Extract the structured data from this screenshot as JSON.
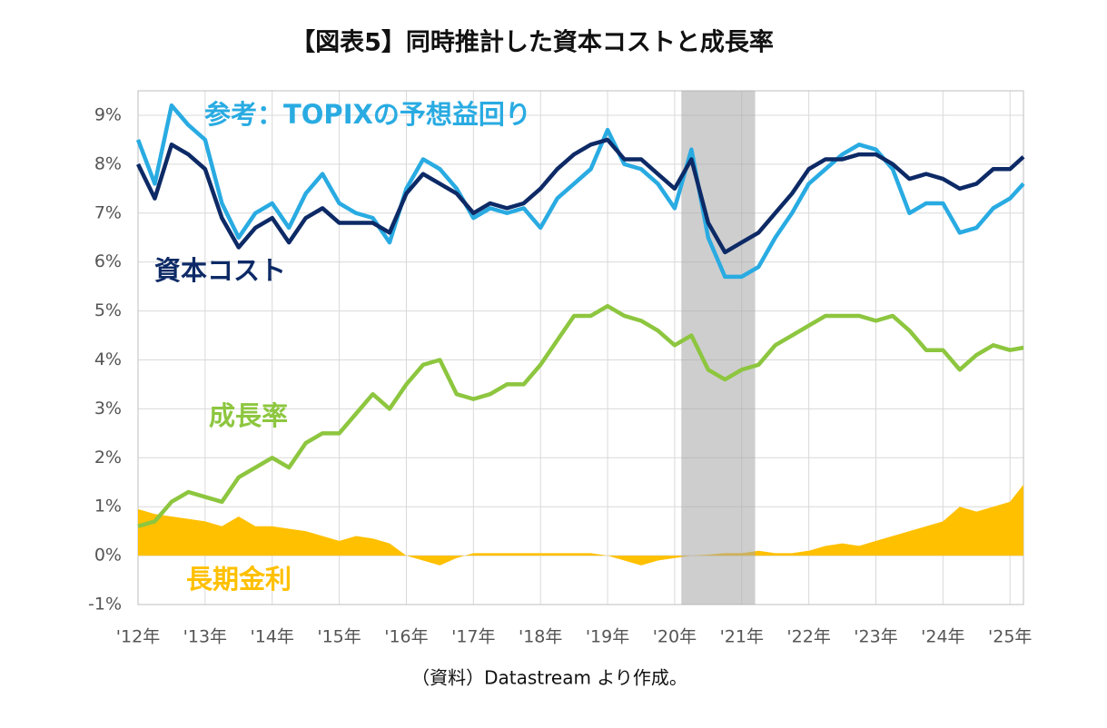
{
  "chart_data": {
    "type": "line",
    "title": "【図表5】同時推計した資本コストと成長率",
    "note": "（資料）Datastream より作成。",
    "x": [
      2012,
      2012.25,
      2012.5,
      2012.75,
      2013,
      2013.25,
      2013.5,
      2013.75,
      2014,
      2014.25,
      2014.5,
      2014.75,
      2015,
      2015.25,
      2015.5,
      2015.75,
      2016,
      2016.25,
      2016.5,
      2016.75,
      2017,
      2017.25,
      2017.5,
      2017.75,
      2018,
      2018.25,
      2018.5,
      2018.75,
      2019,
      2019.25,
      2019.5,
      2019.75,
      2020,
      2020.25,
      2020.5,
      2020.75,
      2021,
      2021.25,
      2021.5,
      2021.75,
      2022,
      2022.25,
      2022.5,
      2022.75,
      2023,
      2023.25,
      2023.5,
      2023.75,
      2024,
      2024.25,
      2024.5,
      2024.75,
      2025,
      2025.2
    ],
    "series": [
      {
        "name": "長期金利",
        "color": "#ffc000",
        "fill": true,
        "values": [
          0.95,
          0.85,
          0.8,
          0.75,
          0.7,
          0.6,
          0.8,
          0.6,
          0.6,
          0.55,
          0.5,
          0.4,
          0.3,
          0.4,
          0.35,
          0.25,
          0.0,
          -0.1,
          -0.2,
          -0.05,
          0.05,
          0.05,
          0.05,
          0.05,
          0.05,
          0.05,
          0.05,
          0.05,
          0.0,
          -0.1,
          -0.2,
          -0.1,
          -0.05,
          0.0,
          0.02,
          0.05,
          0.05,
          0.1,
          0.05,
          0.05,
          0.1,
          0.2,
          0.25,
          0.2,
          0.3,
          0.4,
          0.5,
          0.6,
          0.7,
          1.0,
          0.9,
          1.0,
          1.1,
          1.45
        ]
      },
      {
        "name": "参考：TOPIXの予想益回り",
        "color": "#29abe2",
        "values": [
          8.5,
          7.6,
          9.2,
          8.8,
          8.5,
          7.2,
          6.5,
          7.0,
          7.2,
          6.7,
          7.4,
          7.8,
          7.2,
          7.0,
          6.9,
          6.4,
          7.5,
          8.1,
          7.9,
          7.5,
          6.9,
          7.1,
          7.0,
          7.1,
          6.7,
          7.3,
          7.6,
          7.9,
          8.7,
          8.0,
          7.9,
          7.6,
          7.1,
          8.3,
          6.5,
          5.7,
          5.7,
          5.9,
          6.5,
          7.0,
          7.6,
          7.9,
          8.2,
          8.4,
          8.3,
          7.9,
          7.0,
          7.2,
          7.2,
          6.6,
          6.7,
          7.1,
          7.3,
          7.6
        ]
      },
      {
        "name": "成長率",
        "color": "#8dc63f",
        "values": [
          0.6,
          0.7,
          1.1,
          1.3,
          1.2,
          1.1,
          1.6,
          1.8,
          2.0,
          1.8,
          2.3,
          2.5,
          2.5,
          2.9,
          3.3,
          3.0,
          3.5,
          3.9,
          4.0,
          3.3,
          3.2,
          3.3,
          3.5,
          3.5,
          3.9,
          4.4,
          4.9,
          4.9,
          5.1,
          4.9,
          4.8,
          4.6,
          4.3,
          4.5,
          3.8,
          3.6,
          3.8,
          3.9,
          4.3,
          4.5,
          4.7,
          4.9,
          4.9,
          4.9,
          4.8,
          4.9,
          4.6,
          4.2,
          4.2,
          3.8,
          4.1,
          4.3,
          4.2,
          4.25
        ]
      },
      {
        "name": "資本コスト",
        "color": "#0d2a66",
        "values": [
          8.0,
          7.3,
          8.4,
          8.2,
          7.9,
          6.9,
          6.3,
          6.7,
          6.9,
          6.4,
          6.9,
          7.1,
          6.8,
          6.8,
          6.8,
          6.6,
          7.4,
          7.8,
          7.6,
          7.4,
          7.0,
          7.2,
          7.1,
          7.2,
          7.5,
          7.9,
          8.2,
          8.4,
          8.5,
          8.1,
          8.1,
          7.8,
          7.5,
          8.1,
          6.8,
          6.2,
          6.4,
          6.6,
          7.0,
          7.4,
          7.9,
          8.1,
          8.1,
          8.2,
          8.2,
          8.0,
          7.7,
          7.8,
          7.7,
          7.5,
          7.6,
          7.9,
          7.9,
          8.15
        ]
      }
    ],
    "shaded_range": [
      2020.1,
      2021.2
    ],
    "xlim": [
      2012,
      2025.2
    ],
    "xticks": [
      {
        "value": 2012,
        "label": "'12年"
      },
      {
        "value": 2013,
        "label": "'13年"
      },
      {
        "value": 2014,
        "label": "'14年"
      },
      {
        "value": 2015,
        "label": "'15年"
      },
      {
        "value": 2016,
        "label": "'16年"
      },
      {
        "value": 2017,
        "label": "'17年"
      },
      {
        "value": 2018,
        "label": "'18年"
      },
      {
        "value": 2019,
        "label": "'19年"
      },
      {
        "value": 2020,
        "label": "'20年"
      },
      {
        "value": 2021,
        "label": "'21年"
      },
      {
        "value": 2022,
        "label": "'22年"
      },
      {
        "value": 2023,
        "label": "'23年"
      },
      {
        "value": 2024,
        "label": "'24年"
      },
      {
        "value": 2025,
        "label": "'25年"
      }
    ],
    "ylim": [
      -1,
      9.5
    ],
    "yticks": [
      {
        "value": -1,
        "label": "-1%"
      },
      {
        "value": 0,
        "label": "0%"
      },
      {
        "value": 1,
        "label": "1%"
      },
      {
        "value": 2,
        "label": "2%"
      },
      {
        "value": 3,
        "label": "3%"
      },
      {
        "value": 4,
        "label": "4%"
      },
      {
        "value": 5,
        "label": "5%"
      },
      {
        "value": 6,
        "label": "6%"
      },
      {
        "value": 7,
        "label": "7%"
      },
      {
        "value": 8,
        "label": "8%"
      },
      {
        "value": 9,
        "label": "9%"
      }
    ],
    "grid": true
  }
}
